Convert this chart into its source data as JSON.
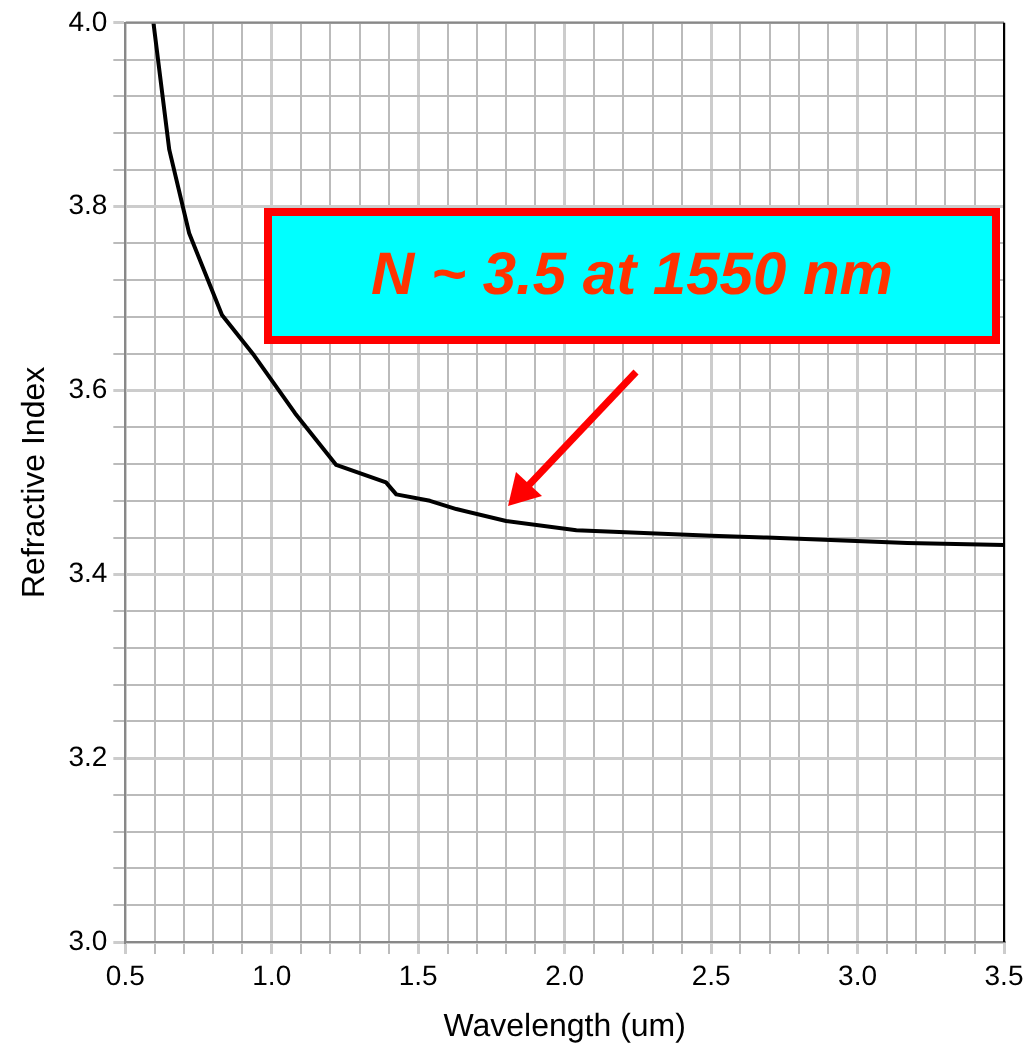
{
  "chart_data": {
    "type": "line",
    "xlabel": "Wavelength (um)",
    "ylabel": "Refractive Index",
    "annotations": [
      "N ~ 3.5 at 1550 nm"
    ],
    "series": [
      {
        "color": "#000000",
        "x": [
          0.596,
          0.65,
          0.718,
          0.83,
          0.94,
          1.08,
          1.22,
          1.39,
          1.425,
          1.54,
          1.63,
          1.8,
          2.04,
          2.5,
          2.69,
          3.17,
          3.5
        ],
        "values": [
          4.0,
          3.862,
          3.771,
          3.682,
          3.638,
          3.575,
          3.519,
          3.5,
          3.487,
          3.48,
          3.471,
          3.458,
          3.448,
          3.442,
          3.44,
          3.434,
          3.432
        ]
      }
    ],
    "xlim": [
      0.5,
      3.5
    ],
    "xticks": [
      {
        "value": 0.5,
        "label": "0.5"
      },
      {
        "value": 0.6,
        "label": null
      },
      {
        "value": 0.7,
        "label": null
      },
      {
        "value": 0.8,
        "label": null
      },
      {
        "value": 0.9,
        "label": null
      },
      {
        "value": 1.0,
        "label": "1.0"
      },
      {
        "value": 1.1,
        "label": null
      },
      {
        "value": 1.2,
        "label": null
      },
      {
        "value": 1.3,
        "label": null
      },
      {
        "value": 1.4,
        "label": null
      },
      {
        "value": 1.5,
        "label": "1.5"
      },
      {
        "value": 1.6,
        "label": null
      },
      {
        "value": 1.7,
        "label": null
      },
      {
        "value": 1.8,
        "label": null
      },
      {
        "value": 1.9,
        "label": null
      },
      {
        "value": 2.0,
        "label": "2.0"
      },
      {
        "value": 2.1,
        "label": null
      },
      {
        "value": 2.2,
        "label": null
      },
      {
        "value": 2.3,
        "label": null
      },
      {
        "value": 2.4,
        "label": null
      },
      {
        "value": 2.5,
        "label": "2.5"
      },
      {
        "value": 2.6,
        "label": null
      },
      {
        "value": 2.7,
        "label": null
      },
      {
        "value": 2.8,
        "label": null
      },
      {
        "value": 2.9,
        "label": null
      },
      {
        "value": 3.0,
        "label": "3.0"
      },
      {
        "value": 3.1,
        "label": null
      },
      {
        "value": 3.2,
        "label": null
      },
      {
        "value": 3.3,
        "label": null
      },
      {
        "value": 3.4,
        "label": null
      },
      {
        "value": 3.5,
        "label": "3.5"
      }
    ],
    "ylim": [
      3.0,
      4.0
    ],
    "yticks": [
      {
        "value": 3.0,
        "label": "3.0"
      },
      {
        "value": 3.04,
        "label": null
      },
      {
        "value": 3.08,
        "label": null
      },
      {
        "value": 3.12,
        "label": null
      },
      {
        "value": 3.16,
        "label": null
      },
      {
        "value": 3.2,
        "label": "3.2"
      },
      {
        "value": 3.24,
        "label": null
      },
      {
        "value": 3.28,
        "label": null
      },
      {
        "value": 3.32,
        "label": null
      },
      {
        "value": 3.36,
        "label": null
      },
      {
        "value": 3.4,
        "label": "3.4"
      },
      {
        "value": 3.44,
        "label": null
      },
      {
        "value": 3.48,
        "label": null
      },
      {
        "value": 3.52,
        "label": null
      },
      {
        "value": 3.56,
        "label": null
      },
      {
        "value": 3.6,
        "label": "3.6"
      },
      {
        "value": 3.64,
        "label": null
      },
      {
        "value": 3.68,
        "label": null
      },
      {
        "value": 3.72,
        "label": null
      },
      {
        "value": 3.76,
        "label": null
      },
      {
        "value": 3.8,
        "label": "3.8"
      },
      {
        "value": 3.84,
        "label": null
      },
      {
        "value": 3.88,
        "label": null
      },
      {
        "value": 3.92,
        "label": null
      },
      {
        "value": 3.96,
        "label": null
      },
      {
        "value": 4.0,
        "label": "4.0"
      }
    ],
    "grid": true,
    "legend": false,
    "marker": "none",
    "line_style": "solid"
  }
}
